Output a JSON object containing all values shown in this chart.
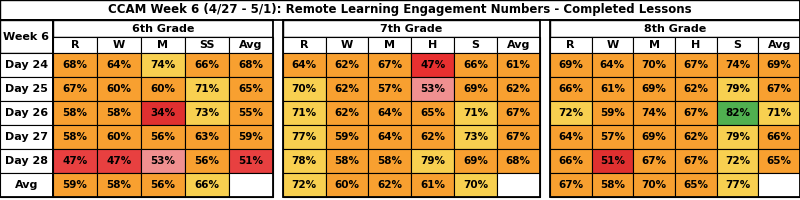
{
  "title": "CCAM Week 6 (4/27 - 5/1): Remote Learning Engagement Numbers - Completed Lessons",
  "row_header": "Week 6",
  "col_groups": [
    {
      "name": "6th Grade",
      "cols": [
        "R",
        "W",
        "M",
        "SS",
        "Avg"
      ]
    },
    {
      "name": "7th Grade",
      "cols": [
        "R",
        "W",
        "M",
        "H",
        "S",
        "Avg"
      ]
    },
    {
      "name": "8th Grade",
      "cols": [
        "R",
        "W",
        "M",
        "H",
        "S",
        "Avg"
      ]
    }
  ],
  "row_labels": [
    "Day 24",
    "Day 25",
    "Day 26",
    "Day 27",
    "Day 28",
    "Avg"
  ],
  "data_6th": [
    [
      "68%",
      "64%",
      "74%",
      "66%",
      "68%"
    ],
    [
      "67%",
      "60%",
      "60%",
      "71%",
      "65%"
    ],
    [
      "58%",
      "58%",
      "34%",
      "73%",
      "55%"
    ],
    [
      "58%",
      "60%",
      "56%",
      "63%",
      "59%"
    ],
    [
      "47%",
      "47%",
      "53%",
      "56%",
      "51%"
    ],
    [
      "59%",
      "58%",
      "56%",
      "66%",
      ""
    ]
  ],
  "data_7th": [
    [
      "64%",
      "62%",
      "67%",
      "47%",
      "66%",
      "61%"
    ],
    [
      "70%",
      "62%",
      "57%",
      "53%",
      "69%",
      "62%"
    ],
    [
      "71%",
      "62%",
      "64%",
      "65%",
      "71%",
      "67%"
    ],
    [
      "77%",
      "59%",
      "64%",
      "62%",
      "73%",
      "67%"
    ],
    [
      "78%",
      "58%",
      "58%",
      "79%",
      "69%",
      "68%"
    ],
    [
      "72%",
      "60%",
      "62%",
      "61%",
      "70%",
      ""
    ]
  ],
  "data_8th": [
    [
      "69%",
      "64%",
      "70%",
      "67%",
      "74%",
      "69%"
    ],
    [
      "66%",
      "61%",
      "69%",
      "62%",
      "79%",
      "67%"
    ],
    [
      "72%",
      "59%",
      "74%",
      "67%",
      "82%",
      "71%"
    ],
    [
      "64%",
      "57%",
      "69%",
      "62%",
      "79%",
      "66%"
    ],
    [
      "66%",
      "51%",
      "67%",
      "67%",
      "72%",
      "65%"
    ],
    [
      "67%",
      "58%",
      "70%",
      "65%",
      "77%",
      ""
    ]
  ],
  "colors_6th": [
    [
      "#f8a030",
      "#f8a030",
      "#f8d050",
      "#f8a030",
      "#f8a030"
    ],
    [
      "#f8a030",
      "#f8a030",
      "#f8a030",
      "#f8d050",
      "#f8a030"
    ],
    [
      "#f8a030",
      "#f8a030",
      "#e03030",
      "#f8d050",
      "#f8a030"
    ],
    [
      "#f8a030",
      "#f8a030",
      "#f8a030",
      "#f8a030",
      "#f8a030"
    ],
    [
      "#e84040",
      "#e84040",
      "#f09090",
      "#f8a030",
      "#e84040"
    ],
    [
      "#f8a030",
      "#f8a030",
      "#f8a030",
      "#f8d050",
      "#ffffff"
    ]
  ],
  "colors_7th": [
    [
      "#f8a030",
      "#f8a030",
      "#f8a030",
      "#e83030",
      "#f8a030",
      "#f8a030"
    ],
    [
      "#f8d050",
      "#f8a030",
      "#f8a030",
      "#f09090",
      "#f8a030",
      "#f8a030"
    ],
    [
      "#f8d050",
      "#f8a030",
      "#f8a030",
      "#f8a030",
      "#f8d050",
      "#f8a030"
    ],
    [
      "#f8d050",
      "#f8a030",
      "#f8a030",
      "#f8a030",
      "#f8d050",
      "#f8a030"
    ],
    [
      "#f8d050",
      "#f8a030",
      "#f8a030",
      "#f8d050",
      "#f8a030",
      "#f8a030"
    ],
    [
      "#f8d050",
      "#f8a030",
      "#f8a030",
      "#f8a030",
      "#f8d050",
      "#ffffff"
    ]
  ],
  "colors_8th": [
    [
      "#f8a030",
      "#f8a030",
      "#f8a030",
      "#f8a030",
      "#f8a030",
      "#f8a030"
    ],
    [
      "#f8a030",
      "#f8a030",
      "#f8a030",
      "#f8a030",
      "#f8d050",
      "#f8a030"
    ],
    [
      "#f8d050",
      "#f8a030",
      "#f8a030",
      "#f8a030",
      "#50b050",
      "#f8d050"
    ],
    [
      "#f8a030",
      "#f8a030",
      "#f8a030",
      "#f8a030",
      "#f8d050",
      "#f8a030"
    ],
    [
      "#f8a030",
      "#e03030",
      "#f8a030",
      "#f8a030",
      "#f8d050",
      "#f8a030"
    ],
    [
      "#f8a030",
      "#f8a030",
      "#f8a030",
      "#f8a030",
      "#f8d050",
      "#ffffff"
    ]
  ],
  "title_fontsize": 8.5,
  "header_fontsize": 8,
  "cell_fontsize": 7.5,
  "label_fontsize": 8,
  "bg_color": "#ffffff"
}
